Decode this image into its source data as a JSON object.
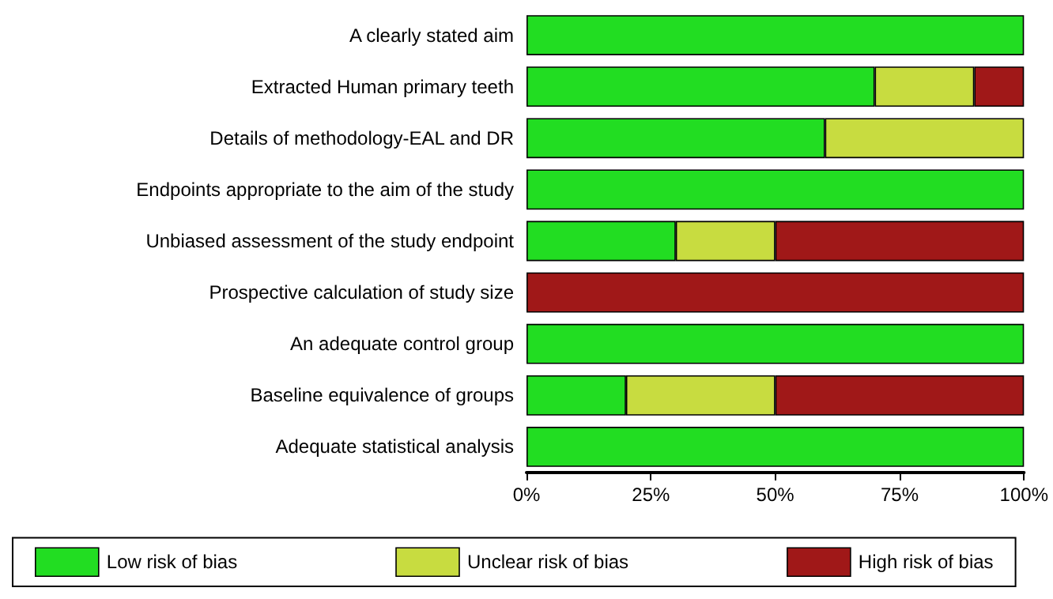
{
  "chart_data": {
    "type": "bar",
    "orientation": "horizontal",
    "stacked": true,
    "categories": [
      "A clearly stated aim",
      "Extracted Human primary teeth",
      "Details of methodology-EAL and DR",
      "Endpoints appropriate to the aim of the study",
      "Unbiased assessment of the study endpoint",
      "Prospective calculation of study size",
      "An adequate control group",
      "Baseline equivalence of groups",
      "Adequate statistical analysis"
    ],
    "series": [
      {
        "name": "Low risk of bias",
        "color": "#22dd22",
        "values": [
          100,
          70,
          60,
          100,
          30,
          0,
          100,
          20,
          100
        ]
      },
      {
        "name": "Unclear risk of bias",
        "color": "#c8dc40",
        "values": [
          0,
          20,
          40,
          0,
          20,
          0,
          0,
          30,
          0
        ]
      },
      {
        "name": "High risk of bias",
        "color": "#a01818",
        "values": [
          0,
          10,
          0,
          0,
          50,
          100,
          0,
          50,
          0
        ]
      }
    ],
    "xlim": [
      0,
      100
    ],
    "xticks": [
      {
        "value": 0,
        "label": "0%"
      },
      {
        "value": 25,
        "label": "25%"
      },
      {
        "value": 50,
        "label": "50%"
      },
      {
        "value": 75,
        "label": "75%"
      },
      {
        "value": 100,
        "label": "100%"
      }
    ],
    "grid": false,
    "legend": "bottom"
  }
}
